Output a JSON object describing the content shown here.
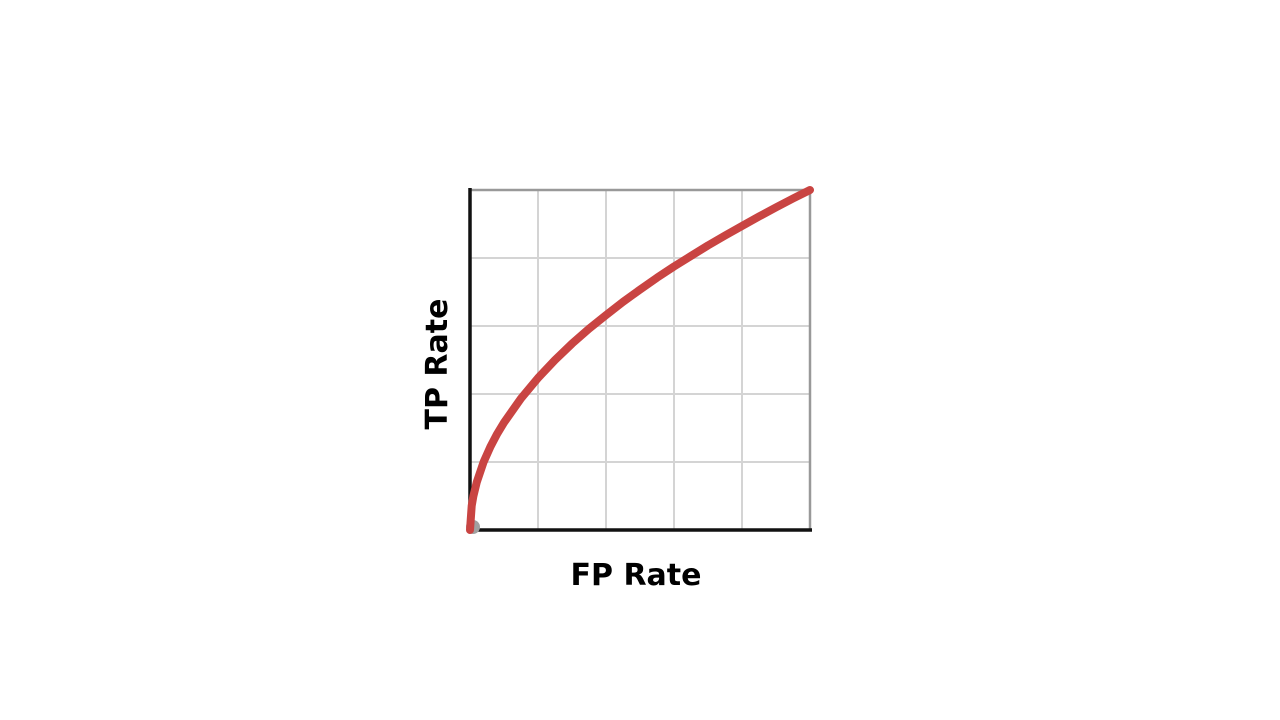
{
  "chart_data": {
    "type": "line",
    "xlabel": "FP Rate",
    "ylabel": "TP Rate",
    "xlim": [
      0,
      1
    ],
    "ylim": [
      0,
      1
    ],
    "grid": true,
    "grid_divisions": {
      "x": 5,
      "y": 5
    },
    "series": [
      {
        "x": [
          0,
          0.005,
          0.01,
          0.02,
          0.04,
          0.06,
          0.08,
          0.1,
          0.15,
          0.2,
          0.25,
          0.3,
          0.35,
          0.4,
          0.45,
          0.5,
          0.55,
          0.6,
          0.65,
          0.7,
          0.75,
          0.8,
          0.85,
          0.9,
          0.95,
          1.0
        ],
        "y": [
          0,
          0.071,
          0.1,
          0.141,
          0.2,
          0.245,
          0.283,
          0.316,
          0.387,
          0.447,
          0.5,
          0.548,
          0.592,
          0.632,
          0.671,
          0.707,
          0.742,
          0.775,
          0.806,
          0.837,
          0.866,
          0.894,
          0.922,
          0.949,
          0.975,
          1.0
        ],
        "color": "#c94442"
      }
    ],
    "colors": {
      "curve": "#c94442",
      "grid": "#d4d4d4",
      "frame": "#999999",
      "axis": "#111111",
      "origin_marker": "#a0a0a0"
    }
  }
}
